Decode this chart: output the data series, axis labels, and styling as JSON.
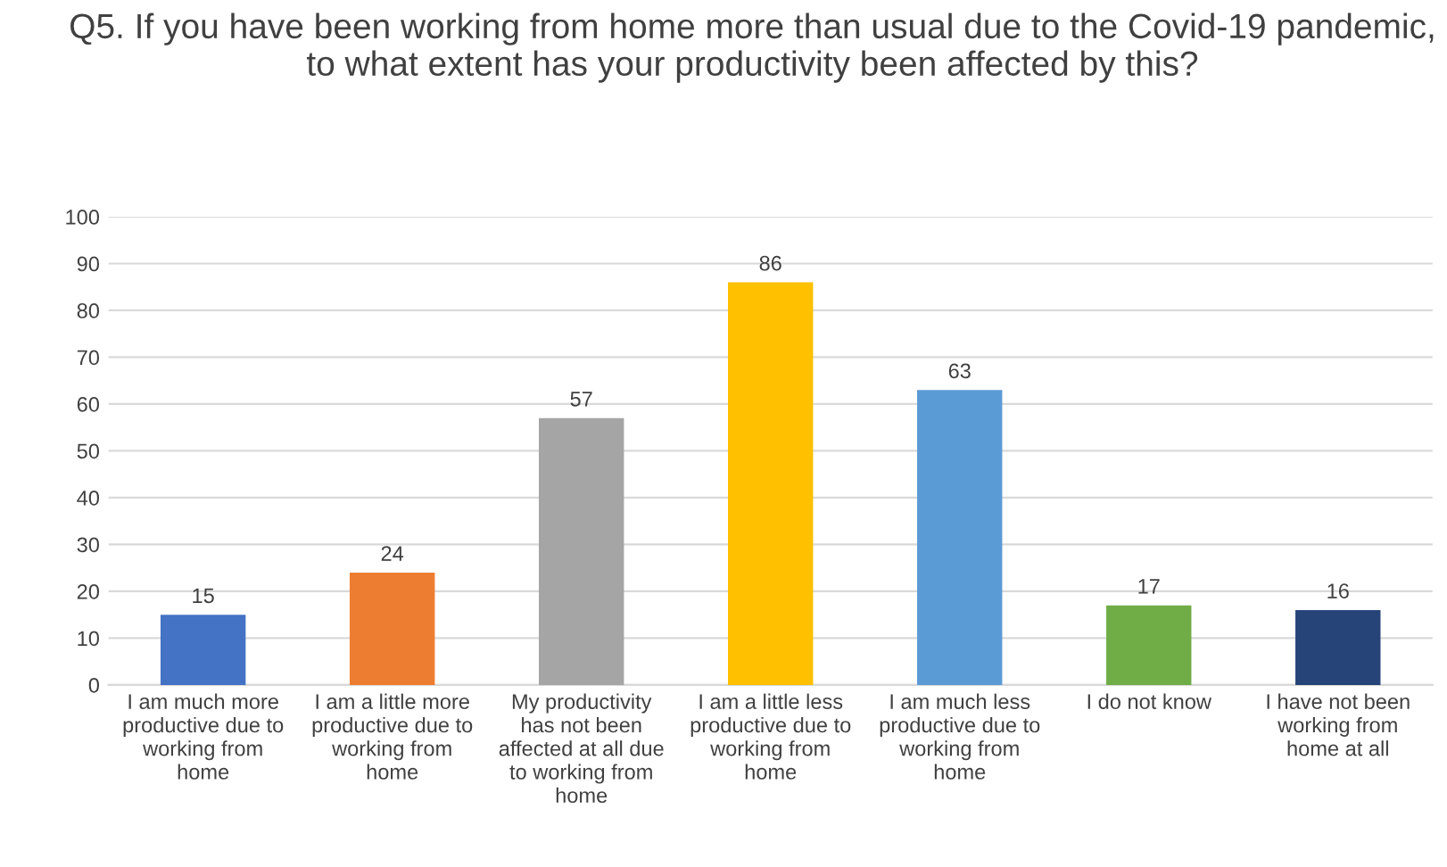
{
  "chart_data": {
    "type": "bar",
    "title": "Q5. If you have been working from home more than usual due to the Covid-19 pandemic, to what extent has your productivity been affected by this?",
    "categories": [
      "I am much more productive due to working from home",
      "I am a little more productive due to working from home",
      "My productivity has not been affected at all due to working from home",
      "I am a little less productive due to working from home",
      "I am much less productive due to working from home",
      "I do not know",
      "I have not been working from home at all"
    ],
    "values": [
      15,
      24,
      57,
      86,
      63,
      17,
      16
    ],
    "colors": [
      "#4472c4",
      "#ed7d31",
      "#a5a5a5",
      "#ffc000",
      "#5b9bd5",
      "#70ad47",
      "#264478"
    ],
    "ylim": [
      0,
      100
    ],
    "yticks": [
      0,
      10,
      20,
      30,
      40,
      50,
      60,
      70,
      80,
      90,
      100
    ],
    "grid": "y",
    "data_labels": true,
    "legend": false
  }
}
